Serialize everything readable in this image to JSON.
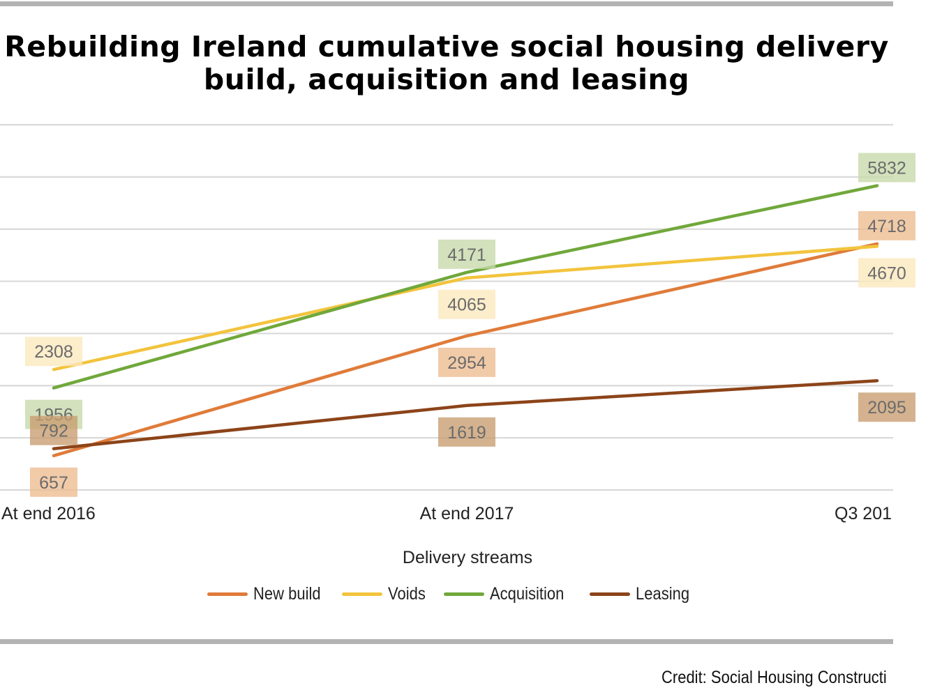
{
  "title_line1": "Rebuilding Ireland cumulative social housing delivery",
  "title_line2": "build, acquisition and leasing",
  "credit": "Credit: Social Housing Constructi",
  "chart_data": {
    "type": "line",
    "title": "Rebuilding Ireland cumulative social housing delivery build, acquisition and leasing",
    "xlabel": "Delivery streams",
    "ylabel": "",
    "categories": [
      "At end 2016",
      "At end 2017",
      "Q3 201"
    ],
    "ylim": [
      0,
      7000
    ],
    "grid": true,
    "legend_position": "bottom",
    "series": [
      {
        "name": "New build",
        "color": "#e07b39",
        "label_bg": "#edbb8f",
        "values": [
          657,
          2954,
          4718
        ],
        "label_side": [
          "below",
          "below",
          "above"
        ]
      },
      {
        "name": "Voids",
        "color": "#f2c43d",
        "label_bg": "#fbe8bc",
        "values": [
          2308,
          4065,
          4670
        ],
        "label_side": [
          "above",
          "below",
          "below"
        ]
      },
      {
        "name": "Acquisition",
        "color": "#70a83b",
        "label_bg": "#c7d9a9",
        "values": [
          1956,
          4171,
          5832
        ],
        "label_side": [
          "below",
          "above",
          "above"
        ]
      },
      {
        "name": "Leasing",
        "color": "#8c4419",
        "label_bg": "#c89c70",
        "values": [
          792,
          1619,
          2095
        ],
        "label_side": [
          "above",
          "below",
          "below"
        ]
      }
    ],
    "value_labels": [
      "1956",
      "2308",
      "792",
      "657",
      "4171",
      "4065",
      "2954",
      "1619",
      "5832",
      "4718",
      "4670",
      "2095"
    ]
  }
}
